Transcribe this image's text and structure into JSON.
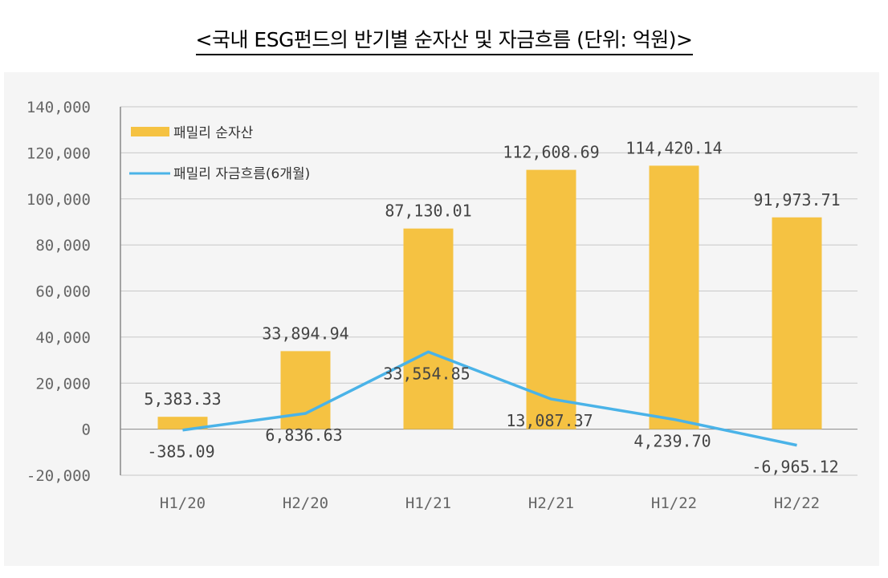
{
  "title": "<국내 ESG펀드의 반기별 순자산 및 자금흐름 (단위: 억원)>",
  "chart_data": {
    "type": "bar+line",
    "title": "<국내 ESG펀드의 반기별 순자산 및 자금흐름 (단위: 억원)>",
    "categories": [
      "H1/20",
      "H2/20",
      "H1/21",
      "H2/21",
      "H1/22",
      "H2/22"
    ],
    "series": [
      {
        "name": "패밀리 순자산",
        "type": "bar",
        "color": "#f5c242",
        "values": [
          5383.33,
          33894.94,
          87130.01,
          112608.69,
          114420.14,
          91973.71
        ],
        "labels": [
          "5,383.33",
          "33,894.94",
          "87,130.01",
          "112,608.69",
          "114,420.14",
          "91,973.71"
        ]
      },
      {
        "name": "패밀리 자금흐름(6개월)",
        "type": "line",
        "color": "#4ab3e8",
        "values": [
          -385.09,
          6836.63,
          33554.85,
          13087.37,
          4239.7,
          -6965.12
        ],
        "labels": [
          "-385.09",
          "6,836.63",
          "33,554.85",
          "13,087.37",
          "4,239.70",
          "-6,965.12"
        ]
      }
    ],
    "ylim": [
      -20000,
      140000
    ],
    "yticks": [
      "140,000",
      "120,000",
      "100,000",
      "80,000",
      "60,000",
      "40,000",
      "20,000",
      "0",
      "-20,000"
    ],
    "ytick_values": [
      140000,
      120000,
      100000,
      80000,
      60000,
      40000,
      20000,
      0,
      -20000
    ],
    "grid": true,
    "legend": "top-left"
  }
}
